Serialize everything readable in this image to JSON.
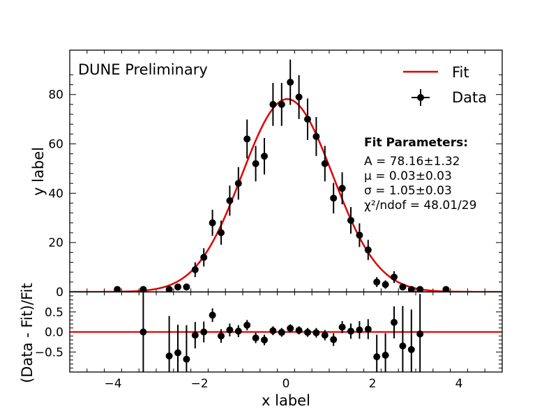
{
  "chart_data": [
    {
      "type": "scatter",
      "panel": "main",
      "label": "DUNE Preliminary",
      "xlabel": "x label",
      "ylabel": "y label",
      "xlim": [
        -5,
        5
      ],
      "ylim": [
        0,
        98
      ],
      "yticks": [
        "0",
        "20",
        "40",
        "60",
        "80"
      ],
      "grid": false,
      "legend": {
        "placement": "top-right",
        "entries": [
          "Fit",
          "Data"
        ]
      },
      "fit_box": {
        "title": "Fit Parameters:",
        "lines": [
          "A = 78.16±1.32",
          "μ = 0.03±0.03",
          "σ = 1.05±0.03",
          "χ²/ndof = 48.01/29"
        ]
      },
      "fit": {
        "name": "Fit",
        "function": "gaussian",
        "A": 78.16,
        "mu": 0.03,
        "sigma": 1.05,
        "color": "#e00000"
      },
      "series": [
        {
          "name": "Data",
          "color": "#000000",
          "x": [
            -3.9,
            -3.3,
            -2.7,
            -2.5,
            -2.3,
            -2.1,
            -1.9,
            -1.7,
            -1.5,
            -1.3,
            -1.1,
            -0.9,
            -0.7,
            -0.5,
            -0.3,
            -0.1,
            0.1,
            0.3,
            0.5,
            0.7,
            0.9,
            1.1,
            1.3,
            1.5,
            1.7,
            1.9,
            2.1,
            2.3,
            2.5,
            2.7,
            2.9,
            3.1,
            3.7
          ],
          "y": [
            1,
            1,
            1,
            2,
            2,
            9,
            14,
            28,
            24,
            37,
            44,
            62,
            52,
            55,
            76,
            76,
            85,
            79,
            70,
            63,
            52,
            38,
            42,
            29,
            23,
            17,
            4,
            3,
            6,
            2,
            1,
            1,
            1
          ],
          "yerr": [
            1,
            1,
            1,
            1.4,
            1.4,
            3,
            3.7,
            5.3,
            4.9,
            6.1,
            6.6,
            7.9,
            7.2,
            7.4,
            8.7,
            8.7,
            9.2,
            8.9,
            8.4,
            7.9,
            7.2,
            6.2,
            6.5,
            5.4,
            4.8,
            4.1,
            2,
            1.7,
            2.4,
            1.4,
            1,
            1,
            1
          ]
        }
      ]
    },
    {
      "type": "scatter",
      "panel": "ratio",
      "xlabel": "x label",
      "ylabel": "(Data - Fit)/Fit",
      "xlim": [
        -5,
        5
      ],
      "ylim": [
        -1,
        1
      ],
      "xticks": [
        "−4",
        "−2",
        "0",
        "2",
        "4"
      ],
      "yticks": [
        "−0.5",
        "0.0",
        "0.5"
      ],
      "reference_line": {
        "y": 0,
        "color": "#e00000"
      },
      "series": [
        {
          "name": "",
          "color": "#000000",
          "x": [
            -3.3,
            -2.7,
            -2.5,
            -2.3,
            -2.1,
            -1.9,
            -1.7,
            -1.5,
            -1.3,
            -1.1,
            -0.9,
            -0.7,
            -0.5,
            -0.3,
            -0.1,
            0.1,
            0.3,
            0.5,
            0.7,
            0.9,
            1.1,
            1.3,
            1.5,
            1.7,
            1.9,
            2.1,
            2.3,
            2.5,
            2.7,
            2.9,
            3.1
          ],
          "y": [
            0,
            -0.6,
            -0.52,
            -0.68,
            -0.08,
            0,
            0.42,
            -0.1,
            0.05,
            0.02,
            0.17,
            -0.15,
            -0.2,
            0.03,
            -0.01,
            0.09,
            0.04,
            -0.01,
            -0.02,
            -0.08,
            -0.19,
            0.12,
            0.02,
            0.05,
            0.07,
            -0.62,
            -0.58,
            0.24,
            -0.35,
            -0.44,
            -0.05
          ],
          "yerr": [
            1,
            1,
            0.7,
            0.85,
            0.33,
            0.26,
            0.17,
            0.17,
            0.16,
            0.15,
            0.13,
            0.13,
            0.13,
            0.11,
            0.11,
            0.1,
            0.1,
            0.11,
            0.12,
            0.13,
            0.16,
            0.15,
            0.19,
            0.22,
            0.25,
            0.55,
            0.55,
            0.4,
            1,
            1,
            1
          ]
        }
      ]
    }
  ]
}
